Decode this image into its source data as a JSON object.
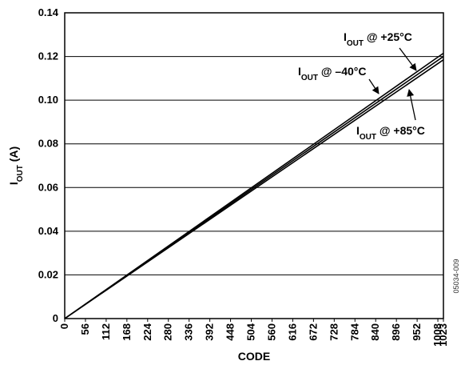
{
  "chart_data": {
    "type": "line",
    "title": "",
    "xlabel": "CODE",
    "ylabel": {
      "main": "I",
      "sub": "OUT",
      "suffix": " (A)"
    },
    "xlim": [
      0,
      1023
    ],
    "ylim": [
      0,
      0.14
    ],
    "xticks": [
      0,
      56,
      112,
      168,
      224,
      280,
      336,
      392,
      448,
      504,
      560,
      616,
      672,
      728,
      784,
      840,
      896,
      952,
      1008,
      1023
    ],
    "yticks": [
      0,
      0.02,
      0.04,
      0.06,
      0.08,
      0.1,
      0.12,
      0.14
    ],
    "ytick_labels": [
      "0",
      "0.02",
      "0.04",
      "0.06",
      "0.08",
      "0.10",
      "0.12",
      "0.14"
    ],
    "grid": {
      "horizontal": true,
      "vertical": false
    },
    "series": [
      {
        "x": [
          0,
          1023
        ],
        "y": [
          0,
          0.1215
        ]
      },
      {
        "x": [
          0,
          1023
        ],
        "y": [
          0,
          0.12
        ]
      },
      {
        "x": [
          0,
          1023
        ],
        "y": [
          0,
          0.1185
        ]
      }
    ],
    "annotations": [
      {
        "text_main": "I",
        "text_sub": "OUT",
        "text_suffix": " @ +25°C"
      },
      {
        "text_main": "I",
        "text_sub": "OUT",
        "text_suffix": " @ –40°C"
      },
      {
        "text_main": "I",
        "text_sub": "OUT",
        "text_suffix": " @ +85°C"
      }
    ],
    "figure_id": "05034-009",
    "colors": {
      "line": "#000000",
      "grid": "#000000",
      "background": "#ffffff"
    }
  }
}
